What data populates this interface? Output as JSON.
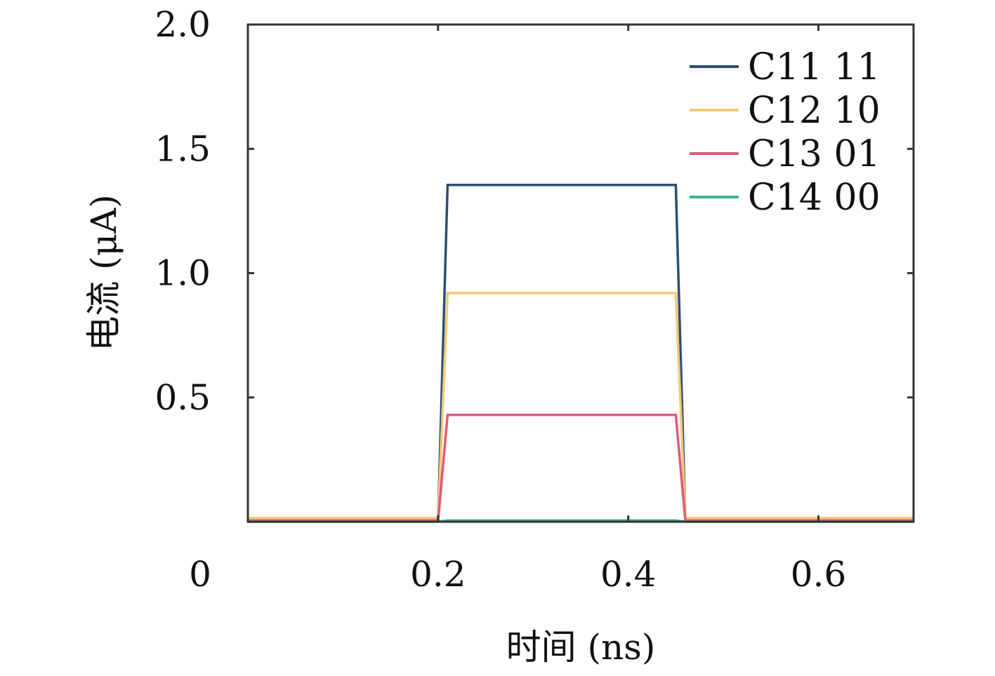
{
  "chart_data": {
    "type": "line",
    "xlabel": "时间 (ns)",
    "ylabel": "电流 (μA)",
    "xlim": [
      0,
      0.7
    ],
    "ylim": [
      0,
      2.0
    ],
    "xticks": [
      0,
      0.2,
      0.4,
      0.6
    ],
    "xtick_labels": [
      "0",
      "0.2",
      "0.4",
      "0.6"
    ],
    "yticks": [
      0.5,
      1.0,
      1.5,
      2.0
    ],
    "ytick_labels": [
      "0.5",
      "1.0",
      "1.5",
      "2.0"
    ],
    "grid": false,
    "legend_position": "top-right",
    "series": [
      {
        "name": "C11 11",
        "color": "#2b4f76",
        "x": [
          0,
          0.2,
          0.21,
          0.45,
          0.46,
          0.7
        ],
        "y": [
          0.01,
          0.01,
          1.355,
          1.355,
          0.01,
          0.01
        ]
      },
      {
        "name": "C12 10",
        "color": "#f5c875",
        "x": [
          0,
          0.2,
          0.21,
          0.45,
          0.46,
          0.7
        ],
        "y": [
          0.015,
          0.015,
          0.92,
          0.92,
          0.015,
          0.015
        ]
      },
      {
        "name": "C13 01",
        "color": "#e05a78",
        "x": [
          0,
          0.2,
          0.21,
          0.45,
          0.46,
          0.7
        ],
        "y": [
          0.005,
          0.005,
          0.43,
          0.43,
          0.005,
          0.005
        ]
      },
      {
        "name": "C14 00",
        "color": "#3cb48e",
        "x": [
          0,
          0.2,
          0.21,
          0.45,
          0.46,
          0.7
        ],
        "y": [
          0.0,
          0.0,
          0.005,
          0.005,
          0.0,
          0.0
        ]
      }
    ]
  }
}
